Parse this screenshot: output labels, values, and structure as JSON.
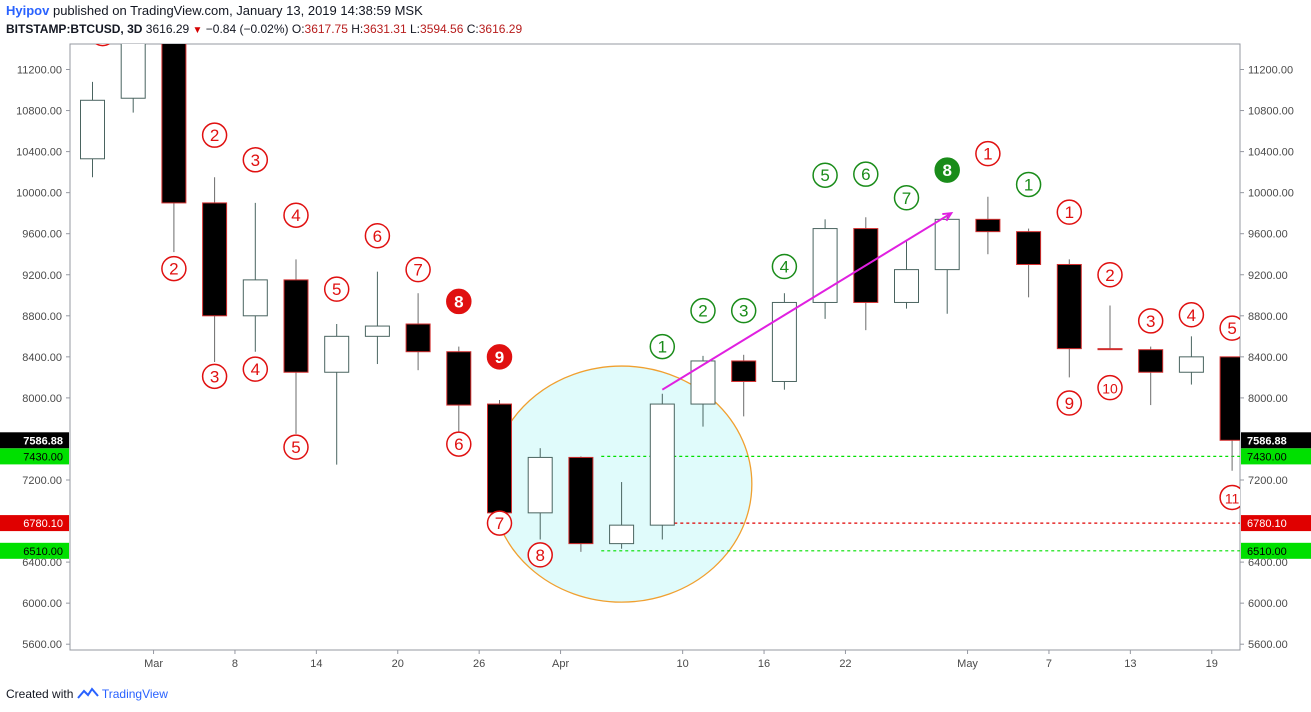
{
  "header": {
    "author": "Hyipov",
    "published": "published on TradingView.com, January 13, 2019 14:38:59 MSK",
    "symbol": "BITSTAMP:BTCUSD, 3D",
    "last": "3616.29",
    "change": "−0.84 (−0.02%)",
    "o_label": "O:",
    "o": "3617.75",
    "h_label": "H:",
    "h": "3631.31",
    "l_label": "L:",
    "l": "3594.56",
    "c_label": "C:",
    "c": "3616.29"
  },
  "footer": {
    "created": "Created with",
    "brand": "TradingView"
  },
  "colors": {
    "bull_fill": "#ffffff",
    "bull_border": "#4a6460",
    "bear_fill": "#000000",
    "bear_border": "#d32f2f",
    "red_marker": "#e01010",
    "green_marker": "#1a8c1a",
    "magenta_arrow": "#e020e0",
    "ellipse_fill": "#e0fbfb",
    "ellipse_stroke": "#f0a030",
    "green_level": "#00e000",
    "red_level": "#e00000"
  },
  "chart_data": {
    "type": "candlestick",
    "ylim": [
      5600,
      11600
    ],
    "yticks": [
      "5600.00",
      "6000.00",
      "6400.00",
      "7200.00",
      "8000.00",
      "8400.00",
      "8800.00",
      "9200.00",
      "9600.00",
      "10000.00",
      "10400.00",
      "10800.00",
      "11200.00"
    ],
    "xticks": [
      {
        "i": 1.5,
        "label": "Mar"
      },
      {
        "i": 3.5,
        "label": "8"
      },
      {
        "i": 5.5,
        "label": "14"
      },
      {
        "i": 7.5,
        "label": "20"
      },
      {
        "i": 9.5,
        "label": "26"
      },
      {
        "i": 11.5,
        "label": "Apr"
      },
      {
        "i": 14.5,
        "label": "10"
      },
      {
        "i": 16.5,
        "label": "16"
      },
      {
        "i": 18.5,
        "label": "22"
      },
      {
        "i": 21.5,
        "label": "May"
      },
      {
        "i": 23.5,
        "label": "7"
      },
      {
        "i": 25.5,
        "label": "13"
      },
      {
        "i": 27.5,
        "label": "19"
      }
    ],
    "candles": [
      {
        "o": 10330,
        "h": 11080,
        "l": 10150,
        "c": 10900
      },
      {
        "o": 10920,
        "h": 11650,
        "l": 10780,
        "c": 11600
      },
      {
        "o": 11600,
        "h": 11700,
        "l": 9420,
        "c": 9900
      },
      {
        "o": 9900,
        "h": 10150,
        "l": 8350,
        "c": 8800
      },
      {
        "o": 8800,
        "h": 9900,
        "l": 8450,
        "c": 9150
      },
      {
        "o": 9150,
        "h": 9350,
        "l": 7650,
        "c": 8250
      },
      {
        "o": 8250,
        "h": 8720,
        "l": 7350,
        "c": 8600
      },
      {
        "o": 8600,
        "h": 9230,
        "l": 8330,
        "c": 8700
      },
      {
        "o": 8720,
        "h": 9020,
        "l": 8270,
        "c": 8450
      },
      {
        "o": 8450,
        "h": 8500,
        "l": 7670,
        "c": 7930
      },
      {
        "o": 7940,
        "h": 7980,
        "l": 6880,
        "c": 6880
      },
      {
        "o": 6880,
        "h": 7510,
        "l": 6620,
        "c": 7420
      },
      {
        "o": 7420,
        "h": 7430,
        "l": 6500,
        "c": 6580
      },
      {
        "o": 6580,
        "h": 7180,
        "l": 6530,
        "c": 6760
      },
      {
        "o": 6760,
        "h": 8040,
        "l": 6620,
        "c": 7940
      },
      {
        "o": 7940,
        "h": 8410,
        "l": 7720,
        "c": 8360
      },
      {
        "o": 8360,
        "h": 8420,
        "l": 7820,
        "c": 8160
      },
      {
        "o": 8160,
        "h": 9020,
        "l": 8080,
        "c": 8930
      },
      {
        "o": 8930,
        "h": 9740,
        "l": 8770,
        "c": 9650
      },
      {
        "o": 9650,
        "h": 9760,
        "l": 8660,
        "c": 8930
      },
      {
        "o": 8930,
        "h": 9540,
        "l": 8870,
        "c": 9250
      },
      {
        "o": 9250,
        "h": 9780,
        "l": 8820,
        "c": 9740
      },
      {
        "o": 9740,
        "h": 9960,
        "l": 9400,
        "c": 9620
      },
      {
        "o": 9620,
        "h": 9650,
        "l": 8980,
        "c": 9300
      },
      {
        "o": 9300,
        "h": 9350,
        "l": 8200,
        "c": 8480
      },
      {
        "o": 8480,
        "h": 8900,
        "l": 8470,
        "c": 8470
      },
      {
        "o": 8470,
        "h": 8500,
        "l": 7930,
        "c": 8250
      },
      {
        "o": 8250,
        "h": 8600,
        "l": 8130,
        "c": 8400
      },
      {
        "o": 8400,
        "h": 8400,
        "l": 7290,
        "c": 7587
      }
    ],
    "price_labels": [
      {
        "value": 7586.88,
        "text": "7586.88",
        "style": "black"
      },
      {
        "value": 7430,
        "text": "7430.00",
        "style": "green"
      },
      {
        "value": 6780.1,
        "text": "6780.10",
        "style": "red"
      },
      {
        "value": 6510,
        "text": "6510.00",
        "style": "green"
      }
    ],
    "levels": [
      {
        "value": 7430,
        "from": 12.5,
        "style": "green"
      },
      {
        "value": 6780.1,
        "from": 14,
        "style": "red"
      },
      {
        "value": 6510,
        "from": 12.5,
        "style": "green"
      }
    ],
    "markers": [
      {
        "i": 0.25,
        "price": 11550,
        "text": "1",
        "color": "red"
      },
      {
        "i": 3,
        "price": 10560,
        "text": "2",
        "color": "red"
      },
      {
        "i": 2,
        "price": 9260,
        "text": "2",
        "color": "red"
      },
      {
        "i": 4,
        "price": 10320,
        "text": "3",
        "color": "red"
      },
      {
        "i": 3,
        "price": 8210,
        "text": "3",
        "color": "red"
      },
      {
        "i": 5,
        "price": 9780,
        "text": "4",
        "color": "red"
      },
      {
        "i": 4,
        "price": 8280,
        "text": "4",
        "color": "red"
      },
      {
        "i": 6,
        "price": 9060,
        "text": "5",
        "color": "red"
      },
      {
        "i": 5,
        "price": 7520,
        "text": "5",
        "color": "red"
      },
      {
        "i": 7,
        "price": 9580,
        "text": "6",
        "color": "red"
      },
      {
        "i": 8,
        "price": 9250,
        "text": "7",
        "color": "red"
      },
      {
        "i": 9,
        "price": 8940,
        "text": "8",
        "color": "red",
        "filled": true
      },
      {
        "i": 9,
        "price": 7550,
        "text": "6",
        "color": "red"
      },
      {
        "i": 10,
        "price": 8400,
        "text": "9",
        "color": "red",
        "filled": true
      },
      {
        "i": 10,
        "price": 6780,
        "text": "7",
        "color": "red"
      },
      {
        "i": 11,
        "price": 6470,
        "text": "8",
        "color": "red"
      },
      {
        "i": 14,
        "price": 8500,
        "text": "1",
        "color": "green"
      },
      {
        "i": 15,
        "price": 8850,
        "text": "2",
        "color": "green"
      },
      {
        "i": 16,
        "price": 8850,
        "text": "3",
        "color": "green"
      },
      {
        "i": 17,
        "price": 9280,
        "text": "4",
        "color": "green"
      },
      {
        "i": 18,
        "price": 10170,
        "text": "5",
        "color": "green"
      },
      {
        "i": 19,
        "price": 10180,
        "text": "6",
        "color": "green"
      },
      {
        "i": 20,
        "price": 9950,
        "text": "7",
        "color": "green"
      },
      {
        "i": 21,
        "price": 10220,
        "text": "8",
        "color": "green",
        "filled": true
      },
      {
        "i": 22,
        "price": 10380,
        "text": "1",
        "color": "red"
      },
      {
        "i": 23,
        "price": 10080,
        "text": "1",
        "color": "green"
      },
      {
        "i": 24,
        "price": 9810,
        "text": "1",
        "color": "red"
      },
      {
        "i": 24,
        "price": 7950,
        "text": "9",
        "color": "red"
      },
      {
        "i": 25,
        "price": 9200,
        "text": "2",
        "color": "red"
      },
      {
        "i": 25,
        "price": 8100,
        "text": "10",
        "color": "red"
      },
      {
        "i": 26,
        "price": 8750,
        "text": "3",
        "color": "red"
      },
      {
        "i": 27,
        "price": 8810,
        "text": "4",
        "color": "red"
      },
      {
        "i": 28,
        "price": 8680,
        "text": "5",
        "color": "red"
      },
      {
        "i": 28,
        "price": 7030,
        "text": "11",
        "color": "red"
      }
    ],
    "annotations": {
      "arrow": {
        "from_i": 14,
        "from_price": 8080,
        "to_i": 21.1,
        "to_price": 9800
      },
      "ellipse": {
        "center_i": 13,
        "center_price": 7160,
        "rx_bars": 3.2,
        "ry_price": 1150
      }
    }
  }
}
